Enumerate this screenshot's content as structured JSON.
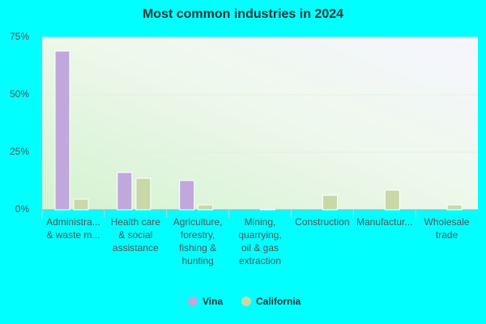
{
  "chart_data": {
    "type": "bar",
    "title": "Most common industries in 2024",
    "categories": [
      [
        "Administra...",
        "& waste m..."
      ],
      [
        "Health care",
        "& social",
        "assistance"
      ],
      [
        "Agriculture,",
        "forestry,",
        "fishing &",
        "hunting"
      ],
      [
        "Mining,",
        "quarrying,",
        "oil & gas",
        "extraction"
      ],
      [
        "Construction"
      ],
      [
        "Manufactur..."
      ],
      [
        "Wholesale",
        "trade"
      ]
    ],
    "series": [
      {
        "name": "Vina",
        "color": "#c0a8dc",
        "values": [
          69.0,
          16.2,
          12.7,
          0,
          0,
          0,
          0
        ]
      },
      {
        "name": "California",
        "color": "#c8d8a8",
        "values": [
          4.6,
          13.7,
          2.1,
          0.2,
          6.3,
          8.5,
          2.1
        ]
      }
    ],
    "ylim": [
      0,
      75
    ],
    "yticks": [
      {
        "value": 0,
        "label": "0%"
      },
      {
        "value": 25,
        "label": "25%"
      },
      {
        "value": 50,
        "label": "50%"
      },
      {
        "value": 75,
        "label": "75%"
      }
    ],
    "grid": true,
    "legend": "bottom"
  }
}
